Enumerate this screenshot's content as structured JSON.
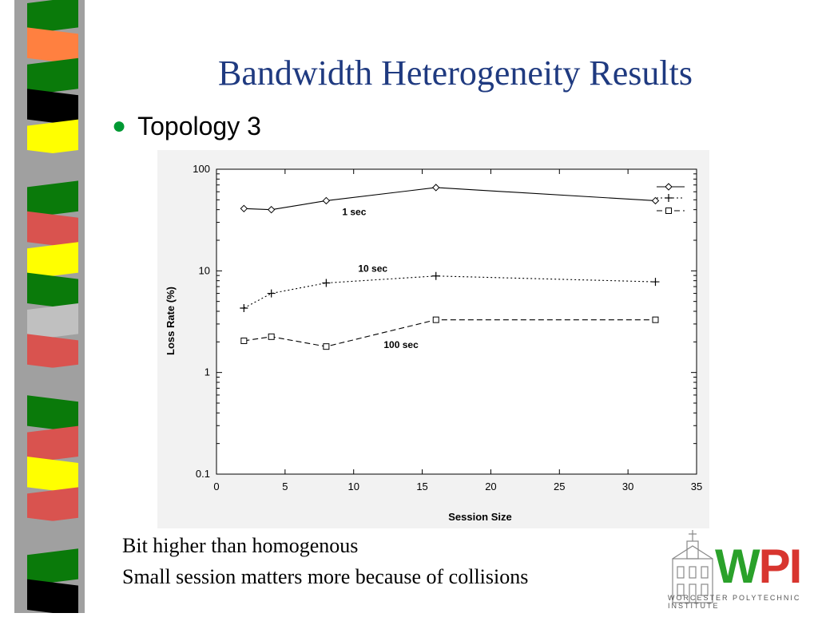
{
  "slide": {
    "title": "Bandwidth Heterogeneity Results",
    "bullet": "Topology 3",
    "notes": [
      "Bit higher than homogenous",
      "Small session matters more because of collisions"
    ],
    "logo": {
      "mark": "WPI",
      "subtitle": "WORCESTER POLYTECHNIC INSTITUTE"
    }
  },
  "sidebar_colors": [
    "#0a7a0a",
    "#ff8040",
    "#0a7a0a",
    "#000000",
    "#ffff00",
    "#a0a0a0",
    "#0a7a0a",
    "#d9534f",
    "#ffff00",
    "#0a7a0a",
    "#c0c0c0",
    "#d9534f",
    "#a0a0a0",
    "#0a7a0a",
    "#d9534f",
    "#ffff00",
    "#d9534f",
    "#a0a0a0",
    "#0a7a0a",
    "#000000"
  ],
  "chart_data": {
    "type": "line",
    "xlabel": "Session Size",
    "ylabel": "Loss Rate (%)",
    "xlim": [
      0,
      35
    ],
    "ylim": [
      0.1,
      100
    ],
    "yscale": "log",
    "xticks": [
      0,
      5,
      10,
      15,
      20,
      25,
      30,
      35
    ],
    "yticks": [
      0.1,
      1,
      10,
      100
    ],
    "x": [
      2,
      4,
      8,
      16,
      32
    ],
    "series": [
      {
        "name": "1 sec",
        "style": "solid",
        "marker": "diamond",
        "values": [
          41,
          40,
          49,
          66,
          49
        ]
      },
      {
        "name": "10 sec",
        "style": "dotted",
        "marker": "plus",
        "values": [
          4.3,
          6.0,
          7.6,
          8.9,
          7.8
        ]
      },
      {
        "name": "100 sec",
        "style": "dashed",
        "marker": "square",
        "values": [
          2.05,
          2.25,
          1.8,
          3.3,
          3.3
        ]
      }
    ],
    "legend": "top-right"
  }
}
